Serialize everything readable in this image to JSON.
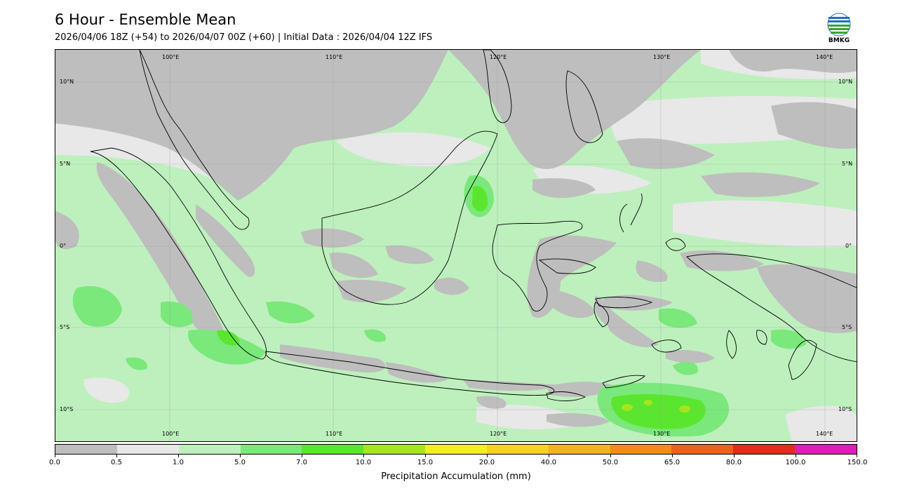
{
  "header": {
    "title": "6 Hour - Ensemble Mean",
    "subtitle": "2026/04/06 18Z (+54) to 2026/04/07 00Z (+60) | Initial Data : 2026/04/04 12Z IFS"
  },
  "logo": {
    "text": "BMKG",
    "icon": "bmkg-logo-icon"
  },
  "map": {
    "lon_labels": [
      "100°E",
      "110°E",
      "120°E",
      "130°E",
      "140°E"
    ],
    "lat_labels": [
      "10°N",
      "5°N",
      "0°",
      "5°S",
      "10°S"
    ],
    "lon_range": [
      93.5,
      142.5
    ],
    "lat_range": [
      -12,
      12
    ]
  },
  "colorbar": {
    "ticks": [
      "0.0",
      "0.5",
      "1.0",
      "5.0",
      "7.0",
      "10.0",
      "15.0",
      "20.0",
      "40.0",
      "50.0",
      "65.0",
      "80.0",
      "100.0",
      "150.0"
    ],
    "colors": [
      "#bebebe",
      "#e8e8e8",
      "#bdf0bd",
      "#7ae87a",
      "#5ae62e",
      "#a6e61a",
      "#f0f01a",
      "#f5d21e",
      "#f0b41e",
      "#f08c1e",
      "#e6641e",
      "#e62a1e",
      "#dc1eb4"
    ],
    "label": "Precipitation Accumulation (mm)"
  }
}
